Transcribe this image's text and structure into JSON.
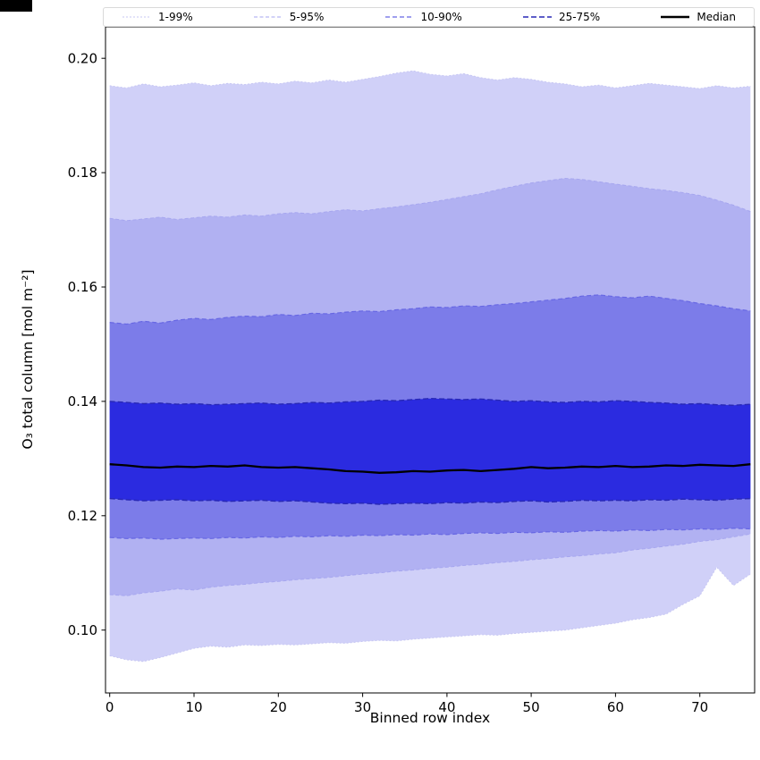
{
  "chart_data": {
    "type": "area",
    "title": "",
    "xlabel": "Binned row index",
    "ylabel": "O₃ total column [mol m⁻²]",
    "xlim": [
      -0.5,
      76.5
    ],
    "ylim": [
      0.089,
      0.2055
    ],
    "grid": false,
    "legend_position": "top",
    "x_ticks": [
      {
        "v": 0,
        "label": "0"
      },
      {
        "v": 10,
        "label": "10"
      },
      {
        "v": 20,
        "label": "20"
      },
      {
        "v": 30,
        "label": "30"
      },
      {
        "v": 40,
        "label": "40"
      },
      {
        "v": 50,
        "label": "50"
      },
      {
        "v": 60,
        "label": "60"
      },
      {
        "v": 70,
        "label": "70"
      }
    ],
    "y_ticks": [
      {
        "v": 0.1,
        "label": "0.10"
      },
      {
        "v": 0.12,
        "label": "0.12"
      },
      {
        "v": 0.14,
        "label": "0.14"
      },
      {
        "v": 0.16,
        "label": "0.16"
      },
      {
        "v": 0.18,
        "label": "0.18"
      },
      {
        "v": 0.2,
        "label": "0.20"
      }
    ],
    "x": [
      0,
      2,
      4,
      6,
      8,
      10,
      12,
      14,
      16,
      18,
      20,
      22,
      24,
      26,
      28,
      30,
      32,
      34,
      36,
      38,
      40,
      42,
      44,
      46,
      48,
      50,
      52,
      54,
      56,
      58,
      60,
      62,
      64,
      66,
      68,
      70,
      72,
      74,
      76
    ],
    "series": {
      "p1": [
        0.0955,
        0.0948,
        0.0945,
        0.0952,
        0.096,
        0.0968,
        0.0972,
        0.097,
        0.0974,
        0.0973,
        0.0975,
        0.0974,
        0.0976,
        0.0978,
        0.0977,
        0.098,
        0.0982,
        0.0981,
        0.0984,
        0.0986,
        0.0988,
        0.099,
        0.0992,
        0.0991,
        0.0994,
        0.0996,
        0.0998,
        0.1,
        0.1004,
        0.1008,
        0.1012,
        0.1018,
        0.1022,
        0.1028,
        0.1045,
        0.106,
        0.111,
        0.1078,
        0.1098
      ],
      "p5": [
        0.1062,
        0.106,
        0.1065,
        0.1068,
        0.1072,
        0.107,
        0.1075,
        0.1078,
        0.108,
        0.1083,
        0.1085,
        0.1088,
        0.109,
        0.1092,
        0.1095,
        0.1098,
        0.11,
        0.1103,
        0.1105,
        0.1108,
        0.111,
        0.1113,
        0.1115,
        0.1118,
        0.112,
        0.1123,
        0.1125,
        0.1128,
        0.113,
        0.1133,
        0.1135,
        0.114,
        0.1143,
        0.1147,
        0.115,
        0.1155,
        0.1158,
        0.1163,
        0.1168
      ],
      "p10": [
        0.1162,
        0.116,
        0.1161,
        0.1159,
        0.116,
        0.1161,
        0.116,
        0.1162,
        0.1161,
        0.1163,
        0.1162,
        0.1164,
        0.1163,
        0.1165,
        0.1164,
        0.1166,
        0.1165,
        0.1167,
        0.1166,
        0.1168,
        0.1167,
        0.1169,
        0.117,
        0.1169,
        0.1171,
        0.117,
        0.1172,
        0.1171,
        0.1173,
        0.1174,
        0.1173,
        0.1175,
        0.1174,
        0.1176,
        0.1175,
        0.1177,
        0.1176,
        0.1178,
        0.1177
      ],
      "p25": [
        0.123,
        0.1228,
        0.1226,
        0.1227,
        0.1228,
        0.1226,
        0.1227,
        0.1225,
        0.1226,
        0.1227,
        0.1225,
        0.1226,
        0.1224,
        0.1222,
        0.1221,
        0.1222,
        0.122,
        0.1221,
        0.1222,
        0.1221,
        0.1223,
        0.1222,
        0.1224,
        0.1223,
        0.1225,
        0.1226,
        0.1224,
        0.1225,
        0.1227,
        0.1226,
        0.1227,
        0.1226,
        0.1228,
        0.1227,
        0.1229,
        0.1228,
        0.1227,
        0.1229,
        0.123
      ],
      "median": [
        0.129,
        0.1288,
        0.1285,
        0.1284,
        0.1286,
        0.1285,
        0.1287,
        0.1286,
        0.1288,
        0.1285,
        0.1284,
        0.1285,
        0.1283,
        0.1281,
        0.1278,
        0.1277,
        0.1275,
        0.1276,
        0.1278,
        0.1277,
        0.1279,
        0.128,
        0.1278,
        0.128,
        0.1282,
        0.1285,
        0.1283,
        0.1284,
        0.1286,
        0.1285,
        0.1287,
        0.1285,
        0.1286,
        0.1288,
        0.1287,
        0.1289,
        0.1288,
        0.1287,
        0.129
      ],
      "p75": [
        0.14,
        0.1398,
        0.1396,
        0.1397,
        0.1395,
        0.1396,
        0.1394,
        0.1395,
        0.1396,
        0.1397,
        0.1395,
        0.1396,
        0.1398,
        0.1397,
        0.1399,
        0.14,
        0.1402,
        0.1401,
        0.1403,
        0.1405,
        0.1404,
        0.1403,
        0.1404,
        0.1402,
        0.14,
        0.1401,
        0.1399,
        0.1398,
        0.14,
        0.1399,
        0.1401,
        0.14,
        0.1398,
        0.1397,
        0.1395,
        0.1396,
        0.1394,
        0.1393,
        0.1395
      ],
      "p90": [
        0.1538,
        0.1535,
        0.154,
        0.1537,
        0.1542,
        0.1545,
        0.1543,
        0.1547,
        0.1549,
        0.1548,
        0.1552,
        0.155,
        0.1554,
        0.1553,
        0.1556,
        0.1558,
        0.1557,
        0.156,
        0.1562,
        0.1565,
        0.1564,
        0.1567,
        0.1566,
        0.1569,
        0.1571,
        0.1574,
        0.1577,
        0.158,
        0.1584,
        0.1586,
        0.1583,
        0.1581,
        0.1584,
        0.158,
        0.1576,
        0.1571,
        0.1567,
        0.1562,
        0.1558
      ],
      "p95": [
        0.172,
        0.1716,
        0.1719,
        0.1722,
        0.1718,
        0.1721,
        0.1724,
        0.1722,
        0.1726,
        0.1724,
        0.1728,
        0.173,
        0.1728,
        0.1732,
        0.1735,
        0.1733,
        0.1737,
        0.174,
        0.1744,
        0.1748,
        0.1753,
        0.1758,
        0.1763,
        0.177,
        0.1776,
        0.1782,
        0.1786,
        0.179,
        0.1788,
        0.1784,
        0.178,
        0.1776,
        0.1772,
        0.1769,
        0.1765,
        0.176,
        0.1752,
        0.1743,
        0.1732
      ],
      "p99": [
        0.1952,
        0.1948,
        0.1955,
        0.195,
        0.1953,
        0.1957,
        0.1952,
        0.1956,
        0.1954,
        0.1958,
        0.1955,
        0.196,
        0.1957,
        0.1962,
        0.1958,
        0.1963,
        0.1968,
        0.1974,
        0.1978,
        0.1972,
        0.1969,
        0.1973,
        0.1966,
        0.1962,
        0.1966,
        0.1963,
        0.1958,
        0.1955,
        0.195,
        0.1953,
        0.1948,
        0.1952,
        0.1956,
        0.1953,
        0.195,
        0.1947,
        0.1952,
        0.1948,
        0.1951
      ]
    },
    "bands": [
      {
        "label": "1-99%",
        "lower": "p1",
        "upper": "p99",
        "fill": "#d0d0f8",
        "edge": "#c7c7f3",
        "dash": "2 2",
        "width": 1
      },
      {
        "label": "5-95%",
        "lower": "p5",
        "upper": "p95",
        "fill": "#b1b1f2",
        "edge": "#a6a6ef",
        "dash": "4 2.5",
        "width": 1
      },
      {
        "label": "10-90%",
        "lower": "p10",
        "upper": "p90",
        "fill": "#7c7ce9",
        "edge": "#6767e3",
        "dash": "5 3",
        "width": 1.2
      },
      {
        "label": "25-75%",
        "lower": "p25",
        "upper": "p75",
        "fill": "#2b2be0",
        "edge": "#2828b5",
        "dash": "6 3",
        "width": 1.4
      }
    ],
    "median_style": {
      "label": "Median",
      "color": "#000000",
      "width": 2.3
    },
    "legend": {
      "entries": [
        {
          "label": "1-99%",
          "color": "#c7c7f3",
          "dash": "2 2",
          "width": 1
        },
        {
          "label": "5-95%",
          "color": "#a6a6ef",
          "dash": "4 2.5",
          "width": 1
        },
        {
          "label": "10-90%",
          "color": "#6767e3",
          "dash": "5 3",
          "width": 1.2
        },
        {
          "label": "25-75%",
          "color": "#2828b5",
          "dash": "6 3",
          "width": 1.4
        },
        {
          "label": "Median",
          "color": "#000000",
          "dash": "",
          "width": 2.5
        }
      ]
    }
  }
}
